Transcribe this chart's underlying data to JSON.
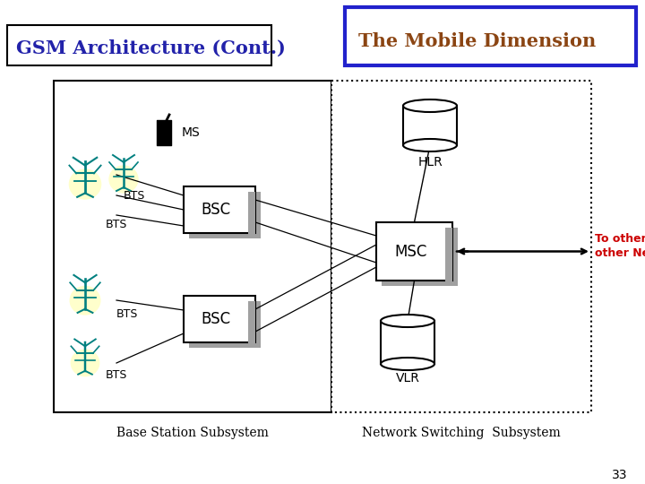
{
  "title_left": "GSM Architecture (Cont.)",
  "title_right": "The Mobile Dimension",
  "title_left_color": "#2222aa",
  "title_right_color": "#8B4513",
  "title_right_border": "#2222cc",
  "bg_color": "#ffffff",
  "subtitle_bottom_left": "Base Station Subsystem",
  "subtitle_bottom_right": "Network Switching  Subsystem",
  "arrow_label": "To other MSC or\nother Networks",
  "arrow_label_color": "#cc0000",
  "page_number": "33",
  "bsc_color": "#d4d4d4",
  "msc_color": "#d4d4d4",
  "shadow_color": "#a0a0a0",
  "antenna_color": "#008080",
  "antenna_bg": "#ffffcc",
  "line_color": "#000000"
}
